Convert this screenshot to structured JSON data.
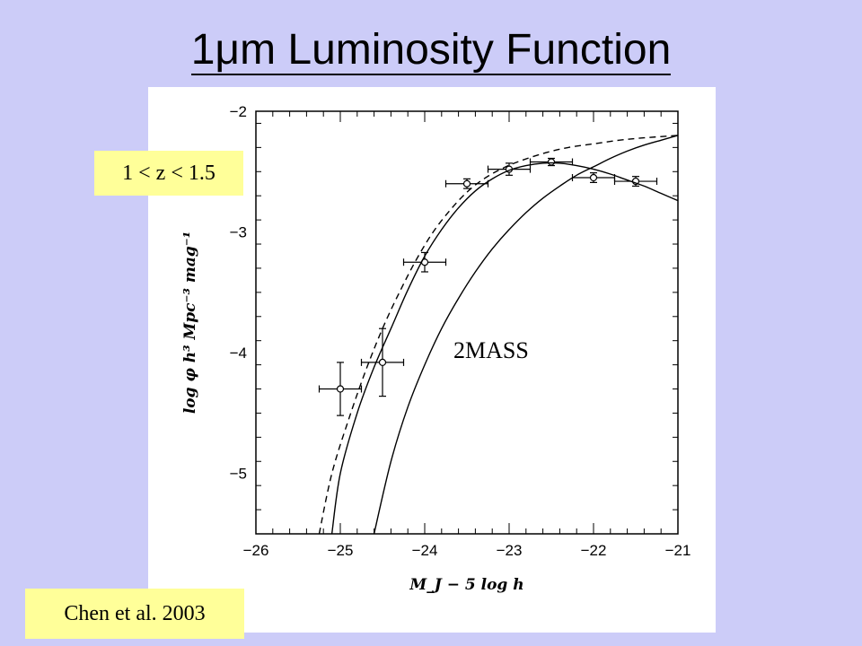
{
  "slide": {
    "title": "1μm Luminosity Function",
    "redshift_label": "1 < z < 1.5",
    "citation": "Chen et al. 2003",
    "curve_label": "2MASS"
  },
  "chart_data": {
    "type": "scatter",
    "title": "",
    "xlabel": "M_J − 5 log h",
    "ylabel": "log φ h³ Mpc⁻³ mag⁻¹",
    "xlim": [
      -26,
      -21
    ],
    "ylim": [
      -5.5,
      -2
    ],
    "xticks": [
      -26,
      -25,
      -24,
      -23,
      -22,
      -21
    ],
    "yticks": [
      -2,
      -3,
      -4,
      -5
    ],
    "xtick_labels": [
      "−26",
      "−25",
      "−24",
      "−23",
      "−22",
      "−21"
    ],
    "ytick_labels": [
      "−2",
      "−3",
      "−4",
      "−5"
    ],
    "grid": false,
    "series": [
      {
        "style": "points-with-errorbars",
        "x": [
          -25.0,
          -24.5,
          -24.0,
          -23.5,
          -23.0,
          -22.5,
          -22.0,
          -21.5
        ],
        "y": [
          -4.3,
          -4.08,
          -3.25,
          -2.6,
          -2.48,
          -2.42,
          -2.55,
          -2.58
        ],
        "xerr": [
          0.25,
          0.25,
          0.25,
          0.25,
          0.25,
          0.25,
          0.25,
          0.25
        ],
        "yerr": [
          0.22,
          0.28,
          0.08,
          0.04,
          0.05,
          0.03,
          0.04,
          0.04
        ]
      },
      {
        "style": "solid",
        "x": [
          -25.1,
          -25.0,
          -24.8,
          -24.6,
          -24.4,
          -24.2,
          -24.0,
          -23.8,
          -23.6,
          -23.4,
          -23.2,
          -23.0,
          -22.8,
          -22.6,
          -22.4,
          -22.2,
          -22.0,
          -21.8,
          -21.6,
          -21.4,
          -21.2,
          -21.0
        ],
        "y": [
          -5.5,
          -5.0,
          -4.5,
          -4.12,
          -3.8,
          -3.48,
          -3.2,
          -2.98,
          -2.8,
          -2.66,
          -2.56,
          -2.49,
          -2.45,
          -2.43,
          -2.43,
          -2.45,
          -2.48,
          -2.52,
          -2.57,
          -2.62,
          -2.68,
          -2.74
        ]
      },
      {
        "style": "dashed",
        "x": [
          -25.25,
          -25.1,
          -24.9,
          -24.7,
          -24.5,
          -24.3,
          -24.1,
          -23.9,
          -23.7,
          -23.5,
          -23.3,
          -23.1,
          -22.9,
          -22.6,
          -22.3,
          -22.0,
          -21.7,
          -21.4,
          -21.0
        ],
        "y": [
          -5.5,
          -5.0,
          -4.55,
          -4.15,
          -3.8,
          -3.5,
          -3.23,
          -3.0,
          -2.82,
          -2.67,
          -2.56,
          -2.48,
          -2.42,
          -2.35,
          -2.3,
          -2.27,
          -2.24,
          -2.22,
          -2.2
        ]
      },
      {
        "name": "2MASS",
        "style": "solid",
        "x": [
          -24.6,
          -24.4,
          -24.2,
          -24.0,
          -23.8,
          -23.6,
          -23.4,
          -23.2,
          -23.0,
          -22.8,
          -22.6,
          -22.4,
          -22.2,
          -22.0,
          -21.8,
          -21.6,
          -21.4,
          -21.2,
          -21.0
        ],
        "y": [
          -5.5,
          -4.9,
          -4.45,
          -4.1,
          -3.8,
          -3.55,
          -3.33,
          -3.14,
          -2.98,
          -2.84,
          -2.72,
          -2.62,
          -2.53,
          -2.46,
          -2.39,
          -2.33,
          -2.28,
          -2.24,
          -2.2
        ]
      }
    ]
  }
}
